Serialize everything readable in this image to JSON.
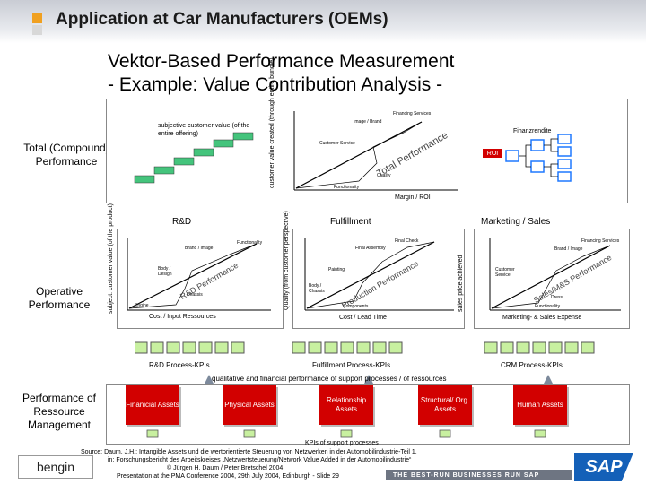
{
  "header": {
    "title": "Application at Car Manufacturers (OEMs)"
  },
  "subtitle": {
    "line1": "Vektor-Based Performance Measurement",
    "line2": "- Example: Value Contribution Analysis -"
  },
  "side_labels": {
    "total": "Total (Compound) Performance",
    "operative": "Operative Performance",
    "resource": "Performance of Ressource Management"
  },
  "top_chart": {
    "step_caption": "subjective customer value (of the entire offering)",
    "y_axis": "customer value created (through entire bundle)",
    "labels": [
      "Financing Services",
      "Image / Brand",
      "Customer Service",
      "Quality",
      "Functionality"
    ],
    "diagonal": "Total Performance",
    "x_axis": "Margin / ROI",
    "finanzrendite": "Finanzrendite",
    "roi": "ROI"
  },
  "operative": {
    "rd": {
      "title": "R&D",
      "y_axis": "subject. customer value (of the product)",
      "labels": [
        "Functionality",
        "Brand / Image",
        "Body / Design",
        "Chassis",
        "Engine"
      ],
      "diagonal": "R&D Performance",
      "x_axis": "Cost / Input Ressources",
      "kpi": "R&D Process-KPIs"
    },
    "fulfillment": {
      "title": "Fulfillment",
      "y_axis": "Quality (from customer perspective)",
      "labels": [
        "Final Check",
        "Final Assembly",
        "Painting",
        "Body / Chassis",
        "Components"
      ],
      "diagonal": "Production Performance",
      "x_axis": "Cost / Lead Time",
      "kpi": "Fulfillment Process-KPIs"
    },
    "marketing": {
      "title": "Marketing / Sales",
      "y_axis": "sales price achieved",
      "labels": [
        "Financing Services",
        "Brand / Image",
        "Customer Service",
        "Dress",
        "Functionality"
      ],
      "diagonal": "Sales/M&S Performance",
      "x_axis": "Marketing- & Sales Expense",
      "kpi": "CRM Process-KPIs"
    }
  },
  "qualitative_caption": "qualitative and financial performance of support processes / of ressources",
  "assets": [
    "Finanicial Assets",
    "Physical Assets",
    "Relationship Assets",
    "Structural/ Org. Assets",
    "Human Assets"
  ],
  "kpis_support": "KPIs of support processes",
  "footer": {
    "source_line1": "Source: Daum, J.H.: Intangible Assets und die wertorientierte Steuerung von Netzwerken in der Automobilindustrie-Teil 1,",
    "source_line2": "in: Forschungsbericht des Arbeitskreises „Netzwertsteuerung/Network Value Added in der Automobilindustrie“",
    "copyright": "© Jürgen H. Daum / Peter Bretschel 2004",
    "presentation": "Presentation at the PMA Conference 2004, 29th July 2004, Edinburgh - Slide 29",
    "logo": "bengin",
    "slogan": "THE BEST-RUN BUSINESSES RUN SAP",
    "sap": "SAP"
  },
  "colors": {
    "accent": "#f0a020",
    "step_green": "#44c47c",
    "asset_red": "#d20000",
    "roi_red": "#d20000",
    "kpi_green": "#c8f0a0"
  }
}
